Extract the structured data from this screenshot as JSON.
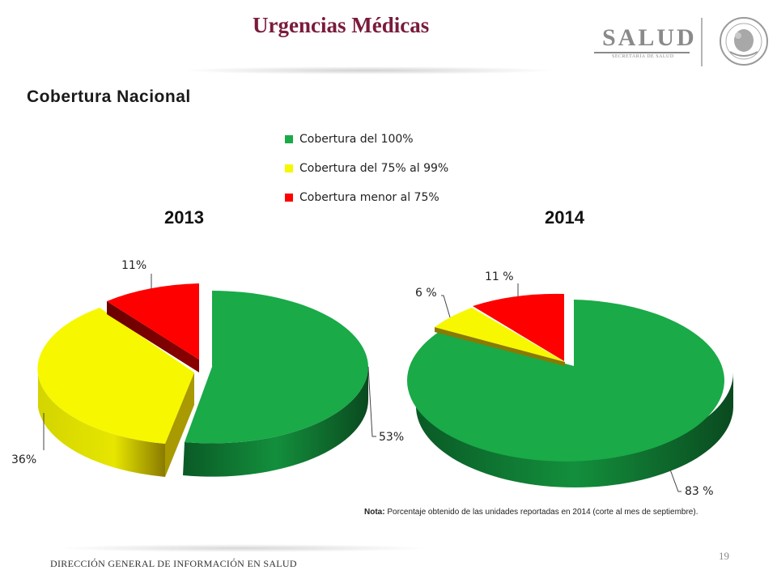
{
  "header": {
    "title": "Urgencias Médicas",
    "logo_text": "SALUD",
    "logo_subtext": "SECRETARÍA DE SALUD"
  },
  "subtitle": "Cobertura Nacional",
  "chart_data": [
    {
      "type": "pie",
      "title": "2013",
      "categories": [
        "Cobertura del 100%",
        "Cobertura del 75% al 99%",
        "Cobertura menor al 75%"
      ],
      "values": [
        53,
        36,
        11
      ],
      "value_labels": [
        "53%",
        "36%",
        "11%"
      ],
      "colors": [
        "#1aaa48",
        "#f7f700",
        "#ff0000"
      ],
      "exploded": true,
      "style": "3d"
    },
    {
      "type": "pie",
      "title": "2014",
      "categories": [
        "Cobertura del 100%",
        "Cobertura del 75% al 99%",
        "Cobertura menor al 75%"
      ],
      "values": [
        83,
        6,
        11
      ],
      "value_labels": [
        "83 %",
        "6 %",
        "11 %"
      ],
      "colors": [
        "#1aaa48",
        "#f7f700",
        "#ff0000"
      ],
      "exploded": true,
      "style": "3d"
    }
  ],
  "legend": {
    "items": [
      {
        "label": "Cobertura del 100%",
        "color": "#1aaa48"
      },
      {
        "label": "Cobertura del 75% al 99%",
        "color": "#f7f700"
      },
      {
        "label": "Cobertura menor al 75%",
        "color": "#ff0000"
      }
    ]
  },
  "note": {
    "prefix": "Nota:",
    "text": " Porcentaje obtenido de las unidades reportadas en 2014 (corte al mes de septiembre)."
  },
  "footer": {
    "text": "DIRECCIÓN GENERAL DE INFORMACIÓN EN SALUD",
    "page_number": "19"
  }
}
